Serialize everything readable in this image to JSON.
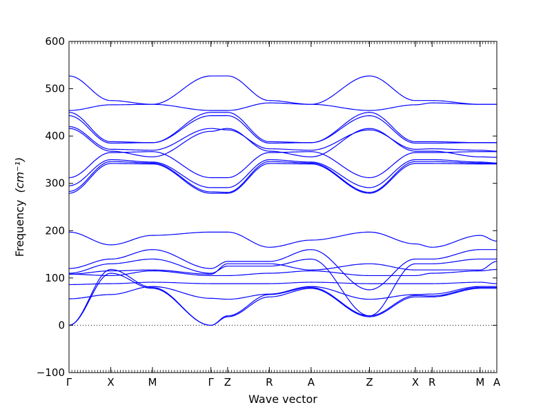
{
  "chart_data": {
    "type": "line",
    "title": "",
    "xlabel": "Wave vector",
    "ylabel": "Frequency",
    "ylabel_unit": "(cm⁻¹)",
    "ylim": [
      -100,
      600
    ],
    "yticks": [
      -100,
      0,
      100,
      200,
      300,
      400,
      500,
      600
    ],
    "xlim": [
      0,
      10.25
    ],
    "grid": false,
    "legend": "none",
    "zero_line": {
      "y": 0,
      "style": "dotted",
      "color": "#000000"
    },
    "line_color": "#0000ff",
    "kpoints": [
      {
        "label": "Γ",
        "x": 0
      },
      {
        "label": "X",
        "x": 1
      },
      {
        "label": "M",
        "x": 2
      },
      {
        "label": "Γ",
        "x": 3.4
      },
      {
        "label": "Z",
        "x": 3.8
      },
      {
        "label": "R",
        "x": 4.8
      },
      {
        "label": "A",
        "x": 5.8
      },
      {
        "label": "Z",
        "x": 7.2
      },
      {
        "label": "X",
        "x": 8.3
      },
      {
        "label": "R",
        "x": 8.7
      },
      {
        "label": "M",
        "x": 9.85
      },
      {
        "label": "A",
        "x": 10.25
      }
    ],
    "series": [
      {
        "values": [
          527,
          475,
          467,
          527,
          527,
          475,
          467,
          527,
          475,
          475,
          467,
          467
        ]
      },
      {
        "values": [
          454,
          466,
          467,
          454,
          454,
          470,
          467,
          454,
          466,
          470,
          467,
          467
        ]
      },
      {
        "values": [
          450,
          388,
          386,
          450,
          450,
          388,
          386,
          450,
          388,
          388,
          386,
          386
        ]
      },
      {
        "values": [
          443,
          385,
          386,
          443,
          443,
          385,
          386,
          443,
          385,
          385,
          386,
          386
        ]
      },
      {
        "values": [
          420,
          372,
          370,
          416,
          413,
          373,
          370,
          413,
          372,
          373,
          370,
          368
        ]
      },
      {
        "values": [
          416,
          368,
          356,
          410,
          416,
          368,
          356,
          416,
          368,
          368,
          356,
          355
        ]
      },
      {
        "values": [
          312,
          365,
          367,
          312,
          312,
          365,
          367,
          312,
          365,
          365,
          367,
          367
        ]
      },
      {
        "values": [
          295,
          350,
          345,
          291,
          291,
          350,
          345,
          291,
          350,
          350,
          345,
          343
        ]
      },
      {
        "values": [
          283,
          346,
          343,
          282,
          281,
          346,
          343,
          281,
          346,
          346,
          343,
          342
        ]
      },
      {
        "values": [
          279,
          342,
          341,
          279,
          279,
          342,
          341,
          279,
          342,
          342,
          341,
          341
        ]
      },
      {
        "values": [
          197,
          170,
          190,
          197,
          197,
          165,
          180,
          197,
          172,
          165,
          190,
          178
        ]
      },
      {
        "values": [
          120,
          140,
          160,
          120,
          135,
          135,
          160,
          75,
          140,
          140,
          160,
          160
        ]
      },
      {
        "values": [
          110,
          130,
          140,
          110,
          125,
          125,
          140,
          20,
          130,
          130,
          140,
          140
        ]
      },
      {
        "values": [
          108,
          115,
          117,
          108,
          130,
          130,
          117,
          130,
          117,
          117,
          117,
          135
        ]
      },
      {
        "values": [
          108,
          105,
          115,
          105,
          105,
          110,
          115,
          105,
          105,
          110,
          115,
          118
        ]
      },
      {
        "values": [
          86,
          88,
          91,
          88,
          88,
          88,
          91,
          88,
          88,
          88,
          91,
          88
        ]
      },
      {
        "values": [
          56,
          65,
          82,
          57,
          55,
          66,
          82,
          55,
          65,
          66,
          82,
          82
        ]
      },
      {
        "values": [
          0,
          118,
          80,
          0,
          20,
          65,
          80,
          20,
          63,
          62,
          80,
          80
        ]
      },
      {
        "values": [
          0,
          110,
          78,
          0,
          18,
          60,
          78,
          18,
          60,
          60,
          78,
          78
        ]
      }
    ]
  }
}
